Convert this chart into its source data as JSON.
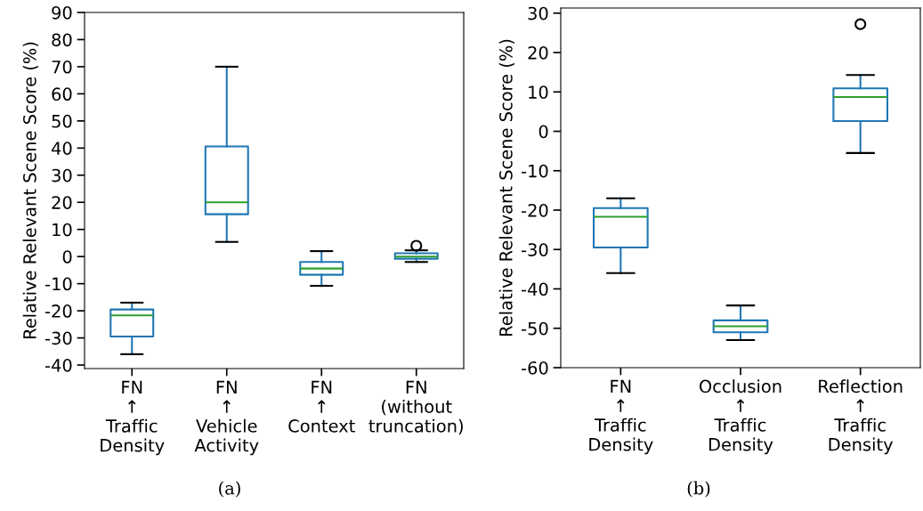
{
  "chart_data": [
    {
      "type": "box",
      "ylabel": "Relative Relevant Scene Score (%)",
      "categories": [
        "FN\n↑\nTraffic\nDensity",
        "FN\n↑\nVehicle\nActivity",
        "FN\n↑\nContext",
        "FN\n(without\ntruncation)"
      ],
      "boxes": [
        {
          "low": -36,
          "q1": -29.5,
          "median": -21.7,
          "q3": -19.5,
          "high": -17
        },
        {
          "low": 5.4,
          "q1": 15.6,
          "median": 20,
          "q3": 40.6,
          "high": 70
        },
        {
          "low": -10.8,
          "q1": -6.7,
          "median": -4.4,
          "q3": -2,
          "high": 2
        },
        {
          "low": -2,
          "q1": -0.8,
          "median": 0,
          "q3": 1.2,
          "high": 2.3,
          "outliers": [
            4
          ]
        }
      ],
      "ylim": [
        -41.3,
        90
      ],
      "yticks": [
        -40,
        -30,
        -20,
        -10,
        0,
        10,
        20,
        30,
        40,
        50,
        60,
        70,
        80,
        90
      ],
      "grid": false,
      "annotations": [
        "(a)"
      ]
    },
    {
      "type": "box",
      "ylabel": "Relative Relevant Scene Score (%)",
      "categories": [
        "FN\n↑\nTraffic\nDensity",
        "Occlusion\n↑\nTraffic\nDensity",
        "Reflection\n↑\nTraffic\nDensity"
      ],
      "boxes": [
        {
          "low": -36,
          "q1": -29.5,
          "median": -21.7,
          "q3": -19.5,
          "high": -17
        },
        {
          "low": -53,
          "q1": -51,
          "median": -49.5,
          "q3": -48,
          "high": -44.2
        },
        {
          "low": -5.5,
          "q1": 2.6,
          "median": 8.7,
          "q3": 10.9,
          "high": 14.3,
          "outliers": [
            27.2
          ]
        }
      ],
      "ylim": [
        -60,
        31.3
      ],
      "yticks": [
        -60,
        -50,
        -40,
        -30,
        -20,
        -10,
        0,
        10,
        20,
        30
      ],
      "grid": false,
      "annotations": [
        "(b)"
      ]
    }
  ]
}
